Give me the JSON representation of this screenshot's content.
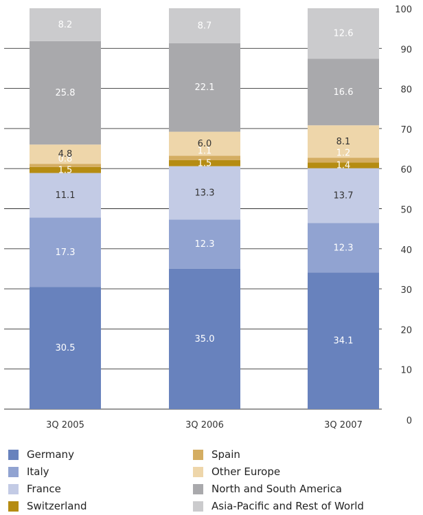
{
  "chart_data": {
    "type": "bar",
    "stacked": true,
    "categories": [
      "3Q 2005",
      "3Q 2006",
      "3Q 2007"
    ],
    "series": [
      {
        "name": "Germany",
        "color": "#6882bd",
        "values": [
          30.5,
          35.0,
          34.1
        ]
      },
      {
        "name": "Italy",
        "color": "#91a3d1",
        "values": [
          17.3,
          12.3,
          12.3
        ]
      },
      {
        "name": "France",
        "color": "#c3cbe5",
        "values": [
          11.1,
          13.3,
          13.7
        ]
      },
      {
        "name": "Switzerland",
        "color": "#b58c12",
        "values": [
          1.5,
          1.5,
          1.4
        ]
      },
      {
        "name": "Spain",
        "color": "#d4ad62",
        "values": [
          0.8,
          1.1,
          1.2
        ]
      },
      {
        "name": "Other Europe",
        "color": "#eed6aa",
        "values": [
          4.8,
          6.0,
          8.1
        ]
      },
      {
        "name": "North and South America",
        "color": "#a9a9ac",
        "values": [
          25.8,
          22.1,
          16.6
        ]
      },
      {
        "name": "Asia-Pacific and Rest of World",
        "color": "#cbcbcd",
        "values": [
          8.2,
          8.7,
          12.6
        ]
      }
    ],
    "yticks": [
      0,
      10,
      20,
      30,
      40,
      50,
      60,
      70,
      80,
      90,
      100
    ],
    "ylim": [
      0,
      100
    ],
    "grid": true,
    "legend_position": "bottom"
  }
}
